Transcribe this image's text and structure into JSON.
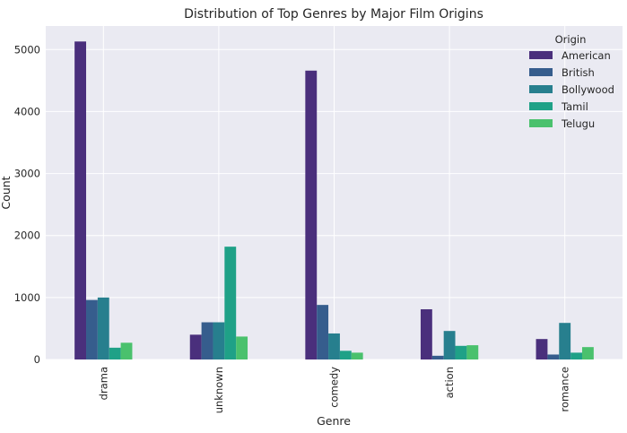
{
  "chart_data": {
    "type": "bar",
    "title": "Distribution of Top Genres by Major Film Origins",
    "xlabel": "Genre",
    "ylabel": "Count",
    "categories": [
      "drama",
      "unknown",
      "comedy",
      "action",
      "romance"
    ],
    "series": [
      {
        "name": "American",
        "color": "#4a2f7c",
        "values": [
          5130,
          400,
          4660,
          810,
          330
        ]
      },
      {
        "name": "British",
        "color": "#365d8d",
        "values": [
          960,
          600,
          880,
          60,
          80
        ]
      },
      {
        "name": "Bollywood",
        "color": "#277f8e",
        "values": [
          1000,
          600,
          420,
          460,
          590
        ]
      },
      {
        "name": "Tamil",
        "color": "#1fa187",
        "values": [
          190,
          1820,
          140,
          220,
          110
        ]
      },
      {
        "name": "Telugu",
        "color": "#4ac16d",
        "values": [
          270,
          370,
          110,
          230,
          200
        ]
      }
    ],
    "ylim": [
      0,
      5380
    ],
    "yticks": [
      0,
      1000,
      2000,
      3000,
      4000,
      5000
    ],
    "ytick_labels": [
      "0",
      "1000",
      "2000",
      "3000",
      "4000",
      "5000"
    ],
    "legend": {
      "title": "Origin",
      "placement": "top-right"
    },
    "grid": true,
    "background": "#eaeaf2",
    "grid_color": "#ffffff"
  }
}
